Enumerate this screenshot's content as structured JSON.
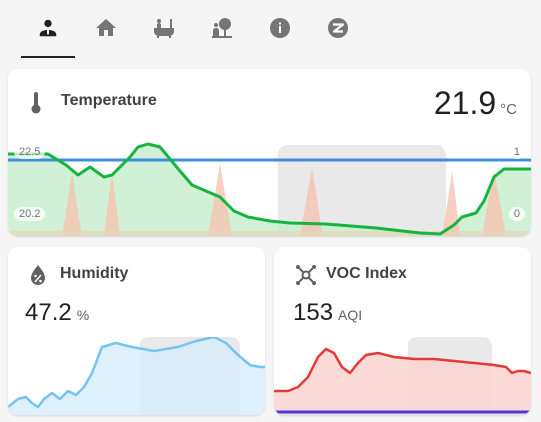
{
  "tabs": {
    "items": [
      {
        "icon": "person-icon",
        "active": true
      },
      {
        "icon": "home-icon",
        "active": false
      },
      {
        "icon": "bathtub-icon",
        "active": false
      },
      {
        "icon": "garden-icon",
        "active": false
      },
      {
        "icon": "info-icon",
        "active": false
      },
      {
        "icon": "zigbee-icon",
        "active": false
      }
    ]
  },
  "temperature": {
    "title": "Temperature",
    "value": "21.9",
    "unit": "°C",
    "y_max_label": "22.5",
    "y_min_label": "20.2",
    "secondary_max_label": "1",
    "secondary_min_label": "0",
    "icon": "thermometer-icon",
    "line_color": "#16b43f",
    "setpoint_color": "#3d8fe0"
  },
  "humidity": {
    "title": "Humidity",
    "value": "47.2",
    "unit": "%",
    "icon": "water-percent-icon",
    "line_color": "#75c3f2"
  },
  "voc": {
    "title": "VOC Index",
    "value": "153",
    "unit": "AQI",
    "icon": "molecule-icon",
    "line_color": "#e53935",
    "baseline_color": "#4a3bd8"
  }
}
